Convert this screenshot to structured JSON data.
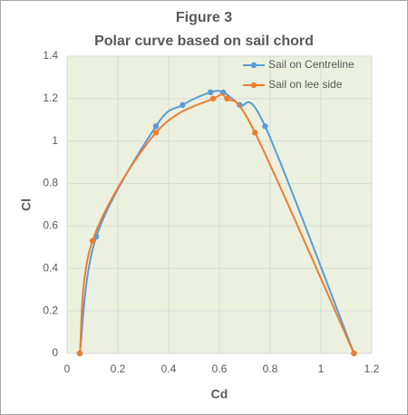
{
  "chart_data": {
    "type": "scatter-smooth",
    "title": "Figure 3",
    "subtitle": "Polar curve based on sail chord",
    "x_label": "Cd",
    "y_label": "Cl",
    "xlim": [
      0,
      1.2
    ],
    "ylim": [
      0,
      1.4
    ],
    "xticks": [
      0,
      0.2,
      0.4,
      0.6,
      0.8,
      1,
      1.2
    ],
    "yticks": [
      0,
      0.2,
      0.4,
      0.6,
      0.8,
      1,
      1.2,
      1.4
    ],
    "grid": true,
    "legend": "top-right",
    "series": [
      {
        "name": "Sail on Centreline",
        "color": "#5b9bd5",
        "x": [
          0.05,
          0.115,
          0.35,
          0.455,
          0.565,
          0.615,
          0.68,
          0.78,
          1.13
        ],
        "values": [
          0,
          0.55,
          1.07,
          1.17,
          1.23,
          1.23,
          1.17,
          1.07,
          0
        ]
      },
      {
        "name": "Sail on lee side",
        "color": "#ed7d31",
        "x": [
          0.05,
          0.1,
          0.35,
          0.575,
          0.63,
          0.74,
          1.13
        ],
        "values": [
          0,
          0.53,
          1.04,
          1.2,
          1.2,
          1.04,
          0
        ]
      }
    ]
  }
}
